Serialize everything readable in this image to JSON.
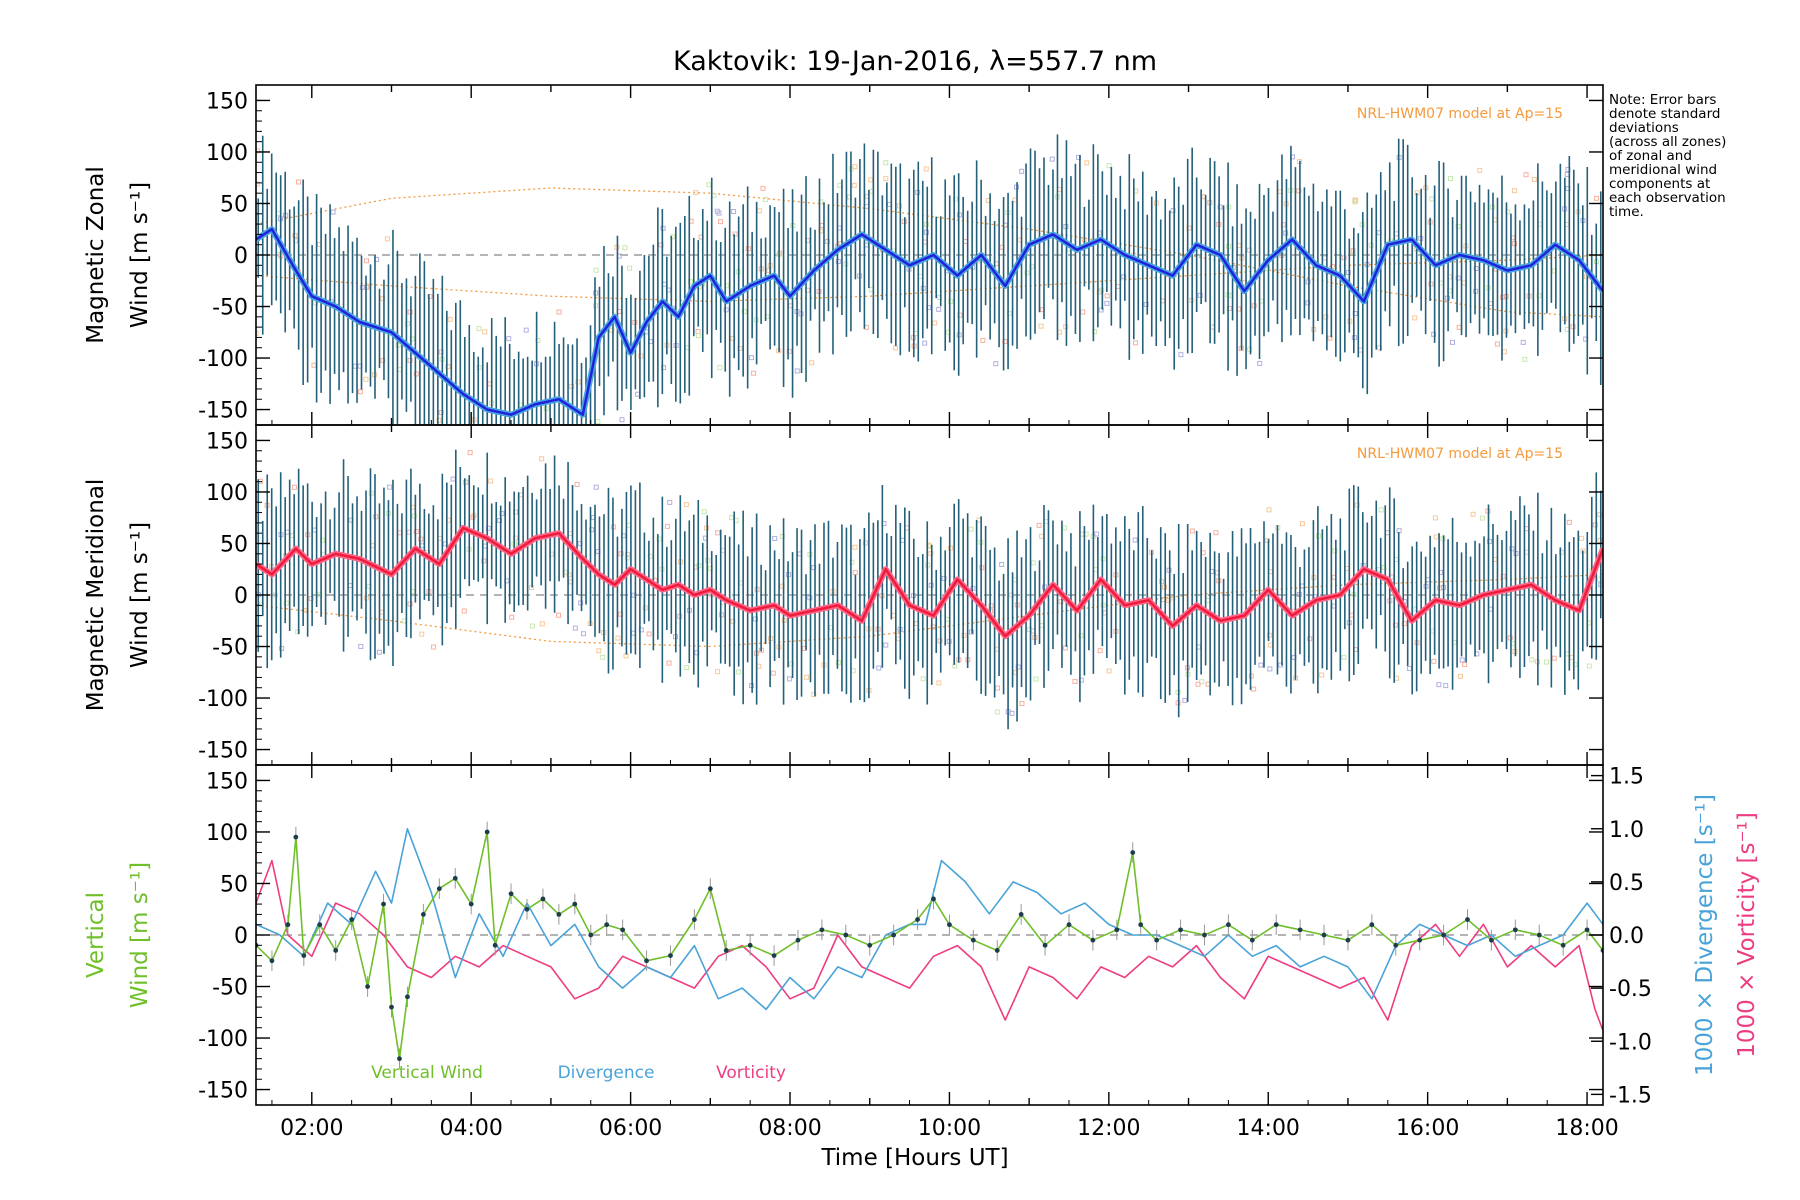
{
  "figure": {
    "title": "Kaktovik: 19-Jan-2016, λ=557.7 nm",
    "note": "Note: Error bars\ndenote standard\ndeviations\n(across all zones)\nof zonal and\nmeridional wind\ncomponents at\neach observation\ntime.",
    "xlabel": "Time [Hours UT]",
    "model_label": "NRL-HWM07 model at Ap=15",
    "legend": [
      "Vertical Wind",
      "Divergence",
      "Vorticity"
    ]
  },
  "colors": {
    "zonal": "#1e22dd",
    "zonal_light": "#4aa3df",
    "meridional": "#ee1c3c",
    "meridional_light": "#ff6688",
    "vertical": "#6fbf2a",
    "divergence": "#4aa3d8",
    "vorticity": "#ee3c82",
    "errorbar": "#24607a",
    "model": "#f59a3c",
    "grid": "#888888"
  },
  "chart_data": [
    {
      "type": "line",
      "ylabel": [
        "Magnetic Zonal",
        "Wind [m s⁻¹]"
      ],
      "xlim": [
        1.3,
        18.2
      ],
      "ylim": [
        -165,
        165
      ],
      "yticks": [
        -150,
        -100,
        -50,
        0,
        50,
        100,
        150
      ],
      "errorbar_sd": 70,
      "model_curves": [
        {
          "x": [
            1.3,
            3,
            5,
            7,
            9,
            11,
            13,
            15,
            17,
            18.2
          ],
          "values": [
            30,
            55,
            65,
            60,
            45,
            25,
            0,
            -30,
            -55,
            -60
          ]
        },
        {
          "x": [
            1.3,
            3,
            5,
            7,
            9,
            11,
            13,
            15,
            17,
            18.2
          ],
          "values": [
            -20,
            -30,
            -40,
            -45,
            -40,
            -30,
            -20,
            -10,
            -5,
            0
          ]
        }
      ],
      "series": [
        {
          "name": "Magnetic Zonal Wind",
          "x": [
            1.3,
            1.5,
            1.8,
            2.0,
            2.3,
            2.6,
            3.0,
            3.3,
            3.6,
            3.9,
            4.2,
            4.5,
            4.8,
            5.1,
            5.4,
            5.6,
            5.8,
            6.0,
            6.2,
            6.4,
            6.6,
            6.8,
            7.0,
            7.2,
            7.5,
            7.8,
            8.0,
            8.3,
            8.6,
            8.9,
            9.2,
            9.5,
            9.8,
            10.1,
            10.4,
            10.7,
            11.0,
            11.3,
            11.6,
            11.9,
            12.2,
            12.5,
            12.8,
            13.1,
            13.4,
            13.7,
            14.0,
            14.3,
            14.6,
            14.9,
            15.2,
            15.5,
            15.8,
            16.1,
            16.4,
            16.7,
            17.0,
            17.3,
            17.6,
            17.9,
            18.2
          ],
          "values": [
            15,
            25,
            -15,
            -40,
            -50,
            -65,
            -75,
            -95,
            -115,
            -135,
            -150,
            -155,
            -145,
            -140,
            -155,
            -80,
            -60,
            -95,
            -65,
            -45,
            -60,
            -30,
            -20,
            -45,
            -30,
            -20,
            -40,
            -15,
            5,
            20,
            5,
            -10,
            0,
            -20,
            0,
            -30,
            10,
            20,
            5,
            15,
            0,
            -10,
            -20,
            10,
            0,
            -35,
            -5,
            15,
            -10,
            -20,
            -45,
            10,
            15,
            -10,
            0,
            -5,
            -15,
            -10,
            10,
            -5,
            -35
          ]
        }
      ]
    },
    {
      "type": "line",
      "ylabel": [
        "Magnetic Meridional",
        "Wind [m s⁻¹]"
      ],
      "xlim": [
        1.3,
        18.2
      ],
      "ylim": [
        -165,
        165
      ],
      "yticks": [
        -150,
        -100,
        -50,
        0,
        50,
        100,
        150
      ],
      "errorbar_sd": 65,
      "model_curves": [
        {
          "x": [
            1.3,
            3,
            5,
            7,
            9,
            11,
            13,
            15,
            17,
            18.2
          ],
          "values": [
            -10,
            -25,
            -45,
            -50,
            -40,
            -20,
            0,
            10,
            15,
            20
          ]
        }
      ],
      "series": [
        {
          "name": "Magnetic Meridional Wind",
          "x": [
            1.3,
            1.5,
            1.8,
            2.0,
            2.3,
            2.6,
            3.0,
            3.3,
            3.6,
            3.9,
            4.2,
            4.5,
            4.8,
            5.1,
            5.4,
            5.6,
            5.8,
            6.0,
            6.2,
            6.4,
            6.6,
            6.8,
            7.0,
            7.2,
            7.5,
            7.8,
            8.0,
            8.3,
            8.6,
            8.9,
            9.2,
            9.5,
            9.8,
            10.1,
            10.4,
            10.7,
            11.0,
            11.3,
            11.6,
            11.9,
            12.2,
            12.5,
            12.8,
            13.1,
            13.4,
            13.7,
            14.0,
            14.3,
            14.6,
            14.9,
            15.2,
            15.5,
            15.8,
            16.1,
            16.4,
            16.7,
            17.0,
            17.3,
            17.6,
            17.9,
            18.2
          ],
          "values": [
            30,
            20,
            45,
            30,
            40,
            35,
            20,
            45,
            30,
            65,
            55,
            40,
            55,
            60,
            35,
            20,
            10,
            25,
            15,
            5,
            10,
            0,
            5,
            -5,
            -15,
            -10,
            -20,
            -15,
            -10,
            -25,
            25,
            -10,
            -20,
            15,
            -10,
            -40,
            -20,
            10,
            -15,
            15,
            -10,
            -5,
            -30,
            -10,
            -25,
            -20,
            5,
            -20,
            -5,
            0,
            25,
            15,
            -25,
            -5,
            -10,
            0,
            5,
            10,
            -5,
            -15,
            45
          ]
        }
      ]
    },
    {
      "type": "line",
      "ylabel": [
        "Vertical",
        "Wind [m s⁻¹]"
      ],
      "ylabel_right": [
        "1000 × Divergence [s⁻¹]",
        "1000 × Vorticity [s⁻¹]"
      ],
      "xlim": [
        1.3,
        18.2
      ],
      "ylim": [
        -165,
        165
      ],
      "ylim_right": [
        -1.6,
        1.6
      ],
      "yticks": [
        -150,
        -100,
        -50,
        0,
        50,
        100,
        150
      ],
      "yticks_right": [
        -1.5,
        -1.0,
        -0.5,
        0.0,
        0.5,
        1.0,
        1.5
      ],
      "xticks": [
        2,
        4,
        6,
        8,
        10,
        12,
        14,
        16,
        18
      ],
      "xticklabels": [
        "02:00",
        "04:00",
        "06:00",
        "08:00",
        "10:00",
        "12:00",
        "14:00",
        "16:00",
        "18:00"
      ],
      "series": [
        {
          "name": "Vertical Wind",
          "x": [
            1.3,
            1.5,
            1.7,
            1.8,
            1.9,
            2.1,
            2.3,
            2.5,
            2.7,
            2.9,
            3.0,
            3.1,
            3.2,
            3.4,
            3.6,
            3.8,
            4.0,
            4.2,
            4.3,
            4.5,
            4.7,
            4.9,
            5.1,
            5.3,
            5.5,
            5.7,
            5.9,
            6.2,
            6.5,
            6.8,
            7.0,
            7.2,
            7.5,
            7.8,
            8.1,
            8.4,
            8.7,
            9.0,
            9.3,
            9.6,
            9.8,
            10.0,
            10.3,
            10.6,
            10.9,
            11.2,
            11.5,
            11.8,
            12.1,
            12.3,
            12.4,
            12.6,
            12.9,
            13.2,
            13.5,
            13.8,
            14.1,
            14.4,
            14.7,
            15.0,
            15.3,
            15.6,
            15.9,
            16.2,
            16.5,
            16.8,
            17.1,
            17.4,
            17.7,
            18.0,
            18.2
          ],
          "values": [
            -10,
            -25,
            10,
            95,
            -20,
            10,
            -15,
            15,
            -50,
            30,
            -70,
            -120,
            -60,
            20,
            45,
            55,
            30,
            100,
            -10,
            40,
            25,
            35,
            20,
            30,
            0,
            10,
            5,
            -25,
            -20,
            15,
            45,
            -15,
            -10,
            -20,
            -5,
            5,
            0,
            -10,
            0,
            15,
            35,
            10,
            -5,
            -15,
            20,
            -10,
            10,
            -5,
            5,
            80,
            10,
            -5,
            5,
            0,
            10,
            -5,
            10,
            5,
            0,
            -5,
            10,
            -10,
            -5,
            0,
            15,
            -5,
            5,
            0,
            -10,
            5,
            -15
          ]
        },
        {
          "name": "Divergence",
          "x": [
            1.3,
            1.6,
            1.9,
            2.2,
            2.5,
            2.8,
            3.0,
            3.2,
            3.5,
            3.8,
            4.1,
            4.4,
            4.7,
            5.0,
            5.3,
            5.6,
            5.9,
            6.2,
            6.5,
            6.8,
            7.1,
            7.4,
            7.7,
            8.0,
            8.3,
            8.6,
            8.9,
            9.2,
            9.5,
            9.7,
            9.9,
            10.2,
            10.5,
            10.8,
            11.1,
            11.4,
            11.7,
            12.0,
            12.3,
            12.6,
            12.9,
            13.2,
            13.5,
            13.8,
            14.1,
            14.4,
            14.7,
            15.0,
            15.3,
            15.6,
            15.9,
            16.2,
            16.5,
            16.8,
            17.1,
            17.4,
            17.7,
            18.0,
            18.2
          ],
          "values": [
            0.1,
            0.0,
            -0.2,
            0.3,
            0.1,
            0.6,
            0.3,
            1.0,
            0.4,
            -0.4,
            0.2,
            -0.2,
            0.3,
            -0.1,
            0.1,
            -0.3,
            -0.5,
            -0.3,
            -0.4,
            -0.1,
            -0.6,
            -0.5,
            -0.7,
            -0.4,
            -0.6,
            -0.3,
            -0.4,
            0.0,
            0.1,
            0.1,
            0.7,
            0.5,
            0.2,
            0.5,
            0.4,
            0.2,
            0.3,
            0.1,
            0.0,
            0.0,
            -0.1,
            -0.2,
            0.0,
            -0.2,
            -0.1,
            -0.3,
            -0.2,
            -0.3,
            -0.6,
            -0.1,
            0.1,
            0.0,
            -0.1,
            0.0,
            -0.2,
            -0.1,
            0.0,
            0.3,
            0.1
          ]
        },
        {
          "name": "Vorticity",
          "x": [
            1.3,
            1.5,
            1.7,
            2.0,
            2.3,
            2.6,
            2.9,
            3.2,
            3.5,
            3.8,
            4.1,
            4.4,
            4.7,
            5.0,
            5.3,
            5.6,
            5.9,
            6.2,
            6.5,
            6.8,
            7.1,
            7.4,
            7.7,
            8.0,
            8.3,
            8.6,
            8.9,
            9.2,
            9.5,
            9.8,
            10.1,
            10.4,
            10.7,
            11.0,
            11.3,
            11.6,
            11.9,
            12.2,
            12.5,
            12.8,
            13.1,
            13.4,
            13.7,
            14.0,
            14.3,
            14.6,
            14.9,
            15.2,
            15.5,
            15.8,
            16.1,
            16.4,
            16.7,
            17.0,
            17.3,
            17.6,
            17.9,
            18.1,
            18.2
          ],
          "values": [
            0.3,
            0.7,
            0.0,
            -0.2,
            0.3,
            0.2,
            0.0,
            -0.3,
            -0.4,
            -0.2,
            -0.3,
            -0.1,
            -0.2,
            -0.3,
            -0.6,
            -0.5,
            -0.2,
            -0.3,
            -0.4,
            -0.5,
            -0.2,
            -0.1,
            -0.3,
            -0.6,
            -0.5,
            0.0,
            -0.3,
            -0.4,
            -0.5,
            -0.2,
            -0.1,
            -0.3,
            -0.8,
            -0.3,
            -0.4,
            -0.6,
            -0.3,
            -0.4,
            -0.2,
            -0.3,
            -0.1,
            -0.4,
            -0.6,
            -0.2,
            -0.3,
            -0.4,
            -0.5,
            -0.4,
            -0.8,
            -0.1,
            0.1,
            -0.2,
            0.1,
            -0.3,
            -0.1,
            -0.3,
            -0.1,
            -0.7,
            -0.9
          ]
        }
      ]
    }
  ]
}
